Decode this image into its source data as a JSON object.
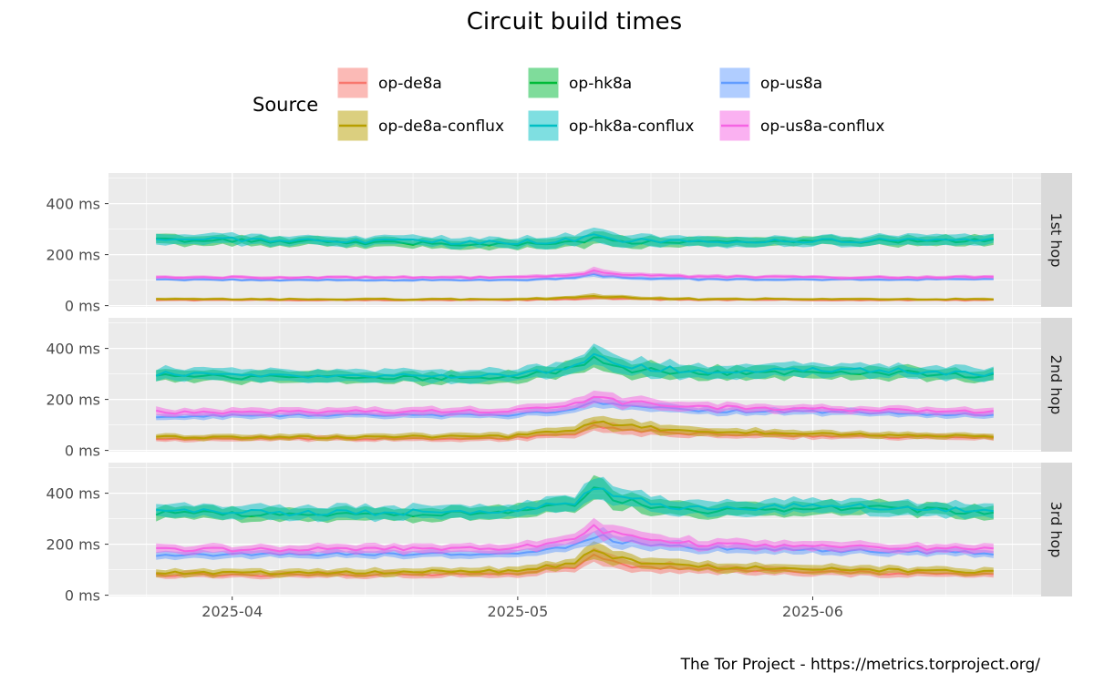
{
  "chart_data": {
    "type": "line",
    "title": "Circuit build times",
    "caption": "The Tor Project - https://metrics.torproject.org/",
    "legend_title": "Source",
    "legend_position": "top",
    "xlabel": "",
    "ylabel": "",
    "x_ticks": [
      "2025-04",
      "2025-05",
      "2025-06"
    ],
    "y_ticks": [
      0,
      200,
      400
    ],
    "y_tick_labels": [
      "0 ms",
      "200 ms",
      "400 ms"
    ],
    "y_unit": "ms",
    "facets": [
      "1st hop",
      "2nd hop",
      "3rd hop"
    ],
    "grid": true,
    "series": [
      {
        "name": "op-de8a",
        "color": "#F8766D"
      },
      {
        "name": "op-de8a-conflux",
        "color": "#B79F00"
      },
      {
        "name": "op-hk8a",
        "color": "#00BA38"
      },
      {
        "name": "op-hk8a-conflux",
        "color": "#00BFC4"
      },
      {
        "name": "op-us8a",
        "color": "#619CFF"
      },
      {
        "name": "op-us8a-conflux",
        "color": "#F564E3"
      }
    ],
    "panels": [
      {
        "facet": "1st hop",
        "ylim": [
          -5,
          520
        ],
        "anchors": {
          "x": [
            "2025-03-24",
            "2025-04-10",
            "2025-04-30",
            "2025-05-07",
            "2025-05-09",
            "2025-05-12",
            "2025-05-20",
            "2025-06-05",
            "2025-06-20"
          ],
          "series": [
            {
              "name": "op-de8a",
              "median": [
                22,
                22,
                22,
                25,
                30,
                26,
                23,
                22,
                22
              ],
              "band": [
                8,
                8,
                8,
                10,
                14,
                11,
                9,
                8,
                8
              ]
            },
            {
              "name": "op-de8a-conflux",
              "median": [
                25,
                25,
                25,
                30,
                38,
                32,
                26,
                25,
                25
              ],
              "band": [
                10,
                10,
                10,
                14,
                20,
                15,
                11,
                10,
                10
              ]
            },
            {
              "name": "op-hk8a",
              "median": [
                258,
                250,
                240,
                248,
                262,
                250,
                248,
                252,
                258
              ],
              "band": [
                38,
                35,
                35,
                42,
                55,
                42,
                38,
                35,
                38
              ]
            },
            {
              "name": "op-hk8a-conflux",
              "median": [
                262,
                255,
                248,
                255,
                270,
                255,
                252,
                255,
                260
              ],
              "band": [
                40,
                38,
                38,
                45,
                60,
                45,
                40,
                38,
                40
              ]
            },
            {
              "name": "op-us8a",
              "median": [
                102,
                100,
                100,
                108,
                120,
                110,
                104,
                102,
                104
              ],
              "band": [
                10,
                10,
                10,
                14,
                20,
                15,
                12,
                10,
                10
              ]
            },
            {
              "name": "op-us8a-conflux",
              "median": [
                112,
                110,
                110,
                120,
                135,
                122,
                114,
                110,
                112
              ],
              "band": [
                14,
                13,
                13,
                18,
                25,
                18,
                15,
                13,
                14
              ]
            }
          ]
        }
      },
      {
        "facet": "2nd hop",
        "ylim": [
          -5,
          520
        ],
        "anchors": {
          "x": [
            "2025-03-24",
            "2025-04-10",
            "2025-04-30",
            "2025-05-07",
            "2025-05-09",
            "2025-05-12",
            "2025-05-20",
            "2025-06-05",
            "2025-06-20"
          ],
          "series": [
            {
              "name": "op-de8a",
              "median": [
                45,
                45,
                48,
                65,
                90,
                80,
                65,
                55,
                50
              ],
              "band": [
                20,
                20,
                22,
                30,
                45,
                38,
                28,
                22,
                20
              ]
            },
            {
              "name": "op-de8a-conflux",
              "median": [
                52,
                52,
                55,
                78,
                110,
                95,
                75,
                62,
                55
              ],
              "band": [
                22,
                22,
                25,
                35,
                52,
                45,
                32,
                25,
                22
              ]
            },
            {
              "name": "op-hk8a",
              "median": [
                292,
                285,
                285,
                320,
                375,
                320,
                300,
                310,
                292
              ],
              "band": [
                45,
                45,
                45,
                55,
                75,
                60,
                50,
                48,
                45
              ]
            },
            {
              "name": "op-hk8a-conflux",
              "median": [
                300,
                292,
                292,
                328,
                385,
                330,
                310,
                318,
                300
              ],
              "band": [
                48,
                48,
                48,
                58,
                80,
                62,
                52,
                50,
                48
              ]
            },
            {
              "name": "op-us8a",
              "median": [
                135,
                138,
                140,
                160,
                190,
                172,
                155,
                150,
                138
              ],
              "band": [
                25,
                25,
                25,
                32,
                42,
                35,
                28,
                26,
                25
              ]
            },
            {
              "name": "op-us8a-conflux",
              "median": [
                150,
                152,
                155,
                178,
                215,
                190,
                170,
                160,
                150
              ],
              "band": [
                30,
                30,
                30,
                38,
                50,
                42,
                34,
                30,
                30
              ]
            }
          ]
        }
      },
      {
        "facet": "3rd hop",
        "ylim": [
          -5,
          520
        ],
        "anchors": {
          "x": [
            "2025-03-24",
            "2025-04-10",
            "2025-04-30",
            "2025-05-07",
            "2025-05-09",
            "2025-05-12",
            "2025-05-20",
            "2025-06-05",
            "2025-06-20"
          ],
          "series": [
            {
              "name": "op-de8a",
              "median": [
                80,
                80,
                85,
                110,
                150,
                120,
                100,
                90,
                80
              ],
              "band": [
                25,
                25,
                28,
                35,
                55,
                45,
                35,
                30,
                25
              ]
            },
            {
              "name": "op-de8a-conflux",
              "median": [
                88,
                88,
                95,
                125,
                175,
                140,
                112,
                100,
                90
              ],
              "band": [
                28,
                28,
                30,
                40,
                62,
                50,
                38,
                32,
                28
              ]
            },
            {
              "name": "op-hk8a",
              "median": [
                322,
                315,
                320,
                355,
                420,
                370,
                330,
                345,
                325
              ],
              "band": [
                50,
                50,
                50,
                60,
                85,
                65,
                55,
                52,
                50
              ]
            },
            {
              "name": "op-hk8a-conflux",
              "median": [
                330,
                322,
                328,
                365,
                432,
                380,
                338,
                352,
                332
              ],
              "band": [
                52,
                52,
                52,
                62,
                90,
                68,
                58,
                55,
                52
              ]
            },
            {
              "name": "op-us8a",
              "median": [
                158,
                160,
                165,
                195,
                235,
                210,
                185,
                175,
                165
              ],
              "band": [
                30,
                30,
                30,
                40,
                55,
                45,
                35,
                32,
                30
              ]
            },
            {
              "name": "op-us8a-conflux",
              "median": [
                178,
                180,
                185,
                215,
                265,
                230,
                200,
                190,
                180
              ],
              "band": [
                35,
                35,
                35,
                45,
                62,
                52,
                40,
                36,
                35
              ]
            }
          ]
        }
      }
    ]
  }
}
